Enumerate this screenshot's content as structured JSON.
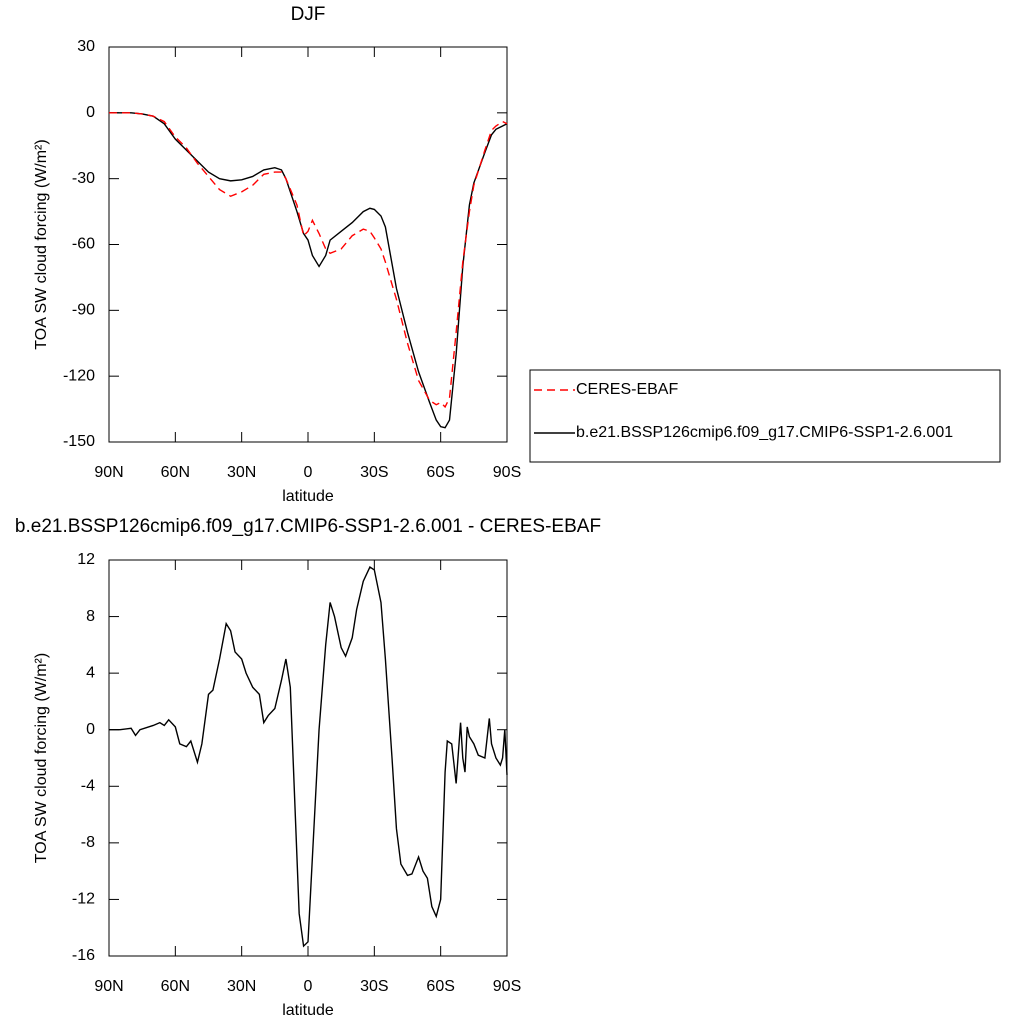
{
  "chart_data": [
    {
      "type": "line",
      "title": "DJF",
      "xlabel": "latitude",
      "ylabel": "TOA SW cloud forcing (W/m²)",
      "x": [
        90,
        85,
        80,
        75,
        70,
        65,
        60,
        55,
        50,
        45,
        40,
        35,
        30,
        25,
        20,
        15,
        12,
        10,
        5,
        2,
        0,
        -2,
        -5,
        -8,
        -10,
        -15,
        -20,
        -25,
        -28,
        -30,
        -33,
        -35,
        -40,
        -45,
        -50,
        -55,
        -58,
        -60,
        -62,
        -64,
        -67,
        -70,
        -73,
        -75,
        -80,
        -83,
        -85,
        -88,
        -90
      ],
      "series": [
        {
          "name": "CERES-EBAF",
          "color": "#ff0000",
          "linestyle": "dashed",
          "values": [
            0,
            0,
            0,
            -0.5,
            -1.5,
            -4,
            -11,
            -16,
            -23,
            -29,
            -35,
            -38,
            -36,
            -33,
            -28,
            -27,
            -27,
            -30,
            -42,
            -56,
            -54,
            -49,
            -55,
            -62,
            -64,
            -62,
            -56,
            -53,
            -54,
            -57,
            -62,
            -68,
            -85,
            -105,
            -122,
            -131,
            -133,
            -132,
            -134,
            -130,
            -100,
            -68,
            -45,
            -33,
            -17,
            -8,
            -6,
            -4,
            -5
          ]
        },
        {
          "name": "b.e21.BSSP126cmip6.f09_g17.CMIP6-SSP1-2.6.001",
          "color": "#000000",
          "linestyle": "solid",
          "values": [
            0,
            0,
            0,
            -0.5,
            -1.5,
            -5,
            -12,
            -17,
            -22,
            -27,
            -30,
            -31,
            -30.5,
            -29,
            -26,
            -25,
            -26,
            -30,
            -45,
            -55,
            -58,
            -65,
            -70,
            -65,
            -58,
            -54,
            -50,
            -45,
            -43.5,
            -44,
            -47,
            -52,
            -80,
            -100,
            -118,
            -132,
            -140,
            -143,
            -143.5,
            -140,
            -110,
            -70,
            -42,
            -32,
            -18,
            -10,
            -7.5,
            -6,
            -5
          ]
        }
      ],
      "xlim": [
        90,
        -90
      ],
      "xticks": [
        {
          "value": 90,
          "label": "90N"
        },
        {
          "value": 60,
          "label": "60N"
        },
        {
          "value": 30,
          "label": "30N"
        },
        0,
        {
          "value": -30,
          "label": "30S"
        },
        {
          "value": -60,
          "label": "60S"
        },
        {
          "value": -90,
          "label": "90S"
        }
      ],
      "ylim": [
        -150,
        30
      ],
      "yticks": [
        -150,
        -120,
        -90,
        -60,
        -30,
        0,
        30
      ],
      "legend": "right"
    },
    {
      "type": "line",
      "title": "b.e21.BSSP126cmip6.f09_g17.CMIP6-SSP1-2.6.001 - CERES-EBAF",
      "xlabel": "latitude",
      "ylabel": "TOA SW cloud forcing (W/m²)",
      "x": [
        90,
        85,
        80,
        78,
        76,
        70,
        67,
        65,
        63,
        60,
        58,
        55,
        53,
        50,
        48,
        45,
        43,
        40,
        37,
        35,
        33,
        30,
        28,
        25,
        22,
        20,
        18,
        15,
        12,
        10,
        8,
        6,
        4,
        2,
        0,
        -2,
        -5,
        -8,
        -10,
        -12,
        -15,
        -17,
        -20,
        -22,
        -25,
        -28,
        -30,
        -33,
        -35,
        -38,
        -40,
        -42,
        -45,
        -47,
        -50,
        -52,
        -54,
        -56,
        -58,
        -60,
        -62,
        -63,
        -65,
        -67,
        -69,
        -70,
        -71,
        -72,
        -73,
        -75,
        -77,
        -80,
        -82,
        -83,
        -85,
        -87,
        -88,
        -89,
        -90
      ],
      "series": [
        {
          "color": "#000000",
          "linestyle": "solid",
          "values": [
            0,
            0,
            0.1,
            -0.4,
            0,
            0.3,
            0.5,
            0.3,
            0.7,
            0.2,
            -1,
            -1.2,
            -0.8,
            -2.3,
            -1,
            2.5,
            2.8,
            5,
            7.5,
            7,
            5.5,
            5,
            4,
            3,
            2.5,
            0.5,
            1,
            1.5,
            3.5,
            5,
            3,
            -5,
            -13,
            -15.3,
            -15,
            -9,
            0,
            6,
            9,
            8,
            5.8,
            5.2,
            6.5,
            8.5,
            10.5,
            11.5,
            11.3,
            9,
            5,
            -2,
            -7,
            -9.5,
            -10.3,
            -10.2,
            -9,
            -10,
            -10.5,
            -12.5,
            -13.2,
            -12,
            -3,
            -0.8,
            -1,
            -3.8,
            0.5,
            -2,
            -3,
            0.2,
            -0.5,
            -1,
            -1.8,
            -2,
            0.8,
            -1,
            -2,
            -2.5,
            -2,
            0,
            -3.2
          ]
        }
      ],
      "xlim": [
        90,
        -90
      ],
      "xticks": [
        {
          "value": 90,
          "label": "90N"
        },
        {
          "value": 60,
          "label": "60N"
        },
        {
          "value": 30,
          "label": "30N"
        },
        0,
        {
          "value": -30,
          "label": "30S"
        },
        {
          "value": -60,
          "label": "60S"
        },
        {
          "value": -90,
          "label": "90S"
        }
      ],
      "ylim": [
        -16,
        12
      ],
      "yticks": [
        -16,
        -12,
        -8,
        -4,
        0,
        4,
        8,
        12
      ]
    }
  ]
}
